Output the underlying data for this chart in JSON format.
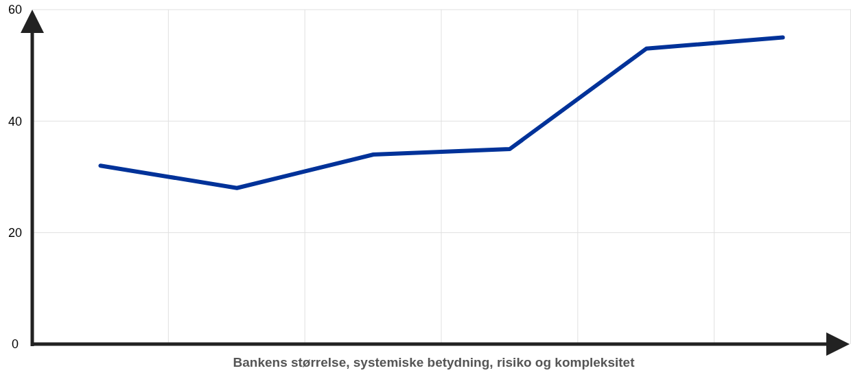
{
  "chart_data": {
    "type": "line",
    "xlabel": "Bankens størrelse, systemiske betydning, risiko og kompleksitet",
    "categories": [
      null,
      null,
      null,
      null,
      null,
      null
    ],
    "series": [
      {
        "color": "#003299",
        "values": [
          32,
          28,
          34,
          35,
          53,
          55
        ]
      }
    ],
    "ylim": [
      0,
      60
    ],
    "yticks": [
      0,
      20,
      40,
      60
    ],
    "grid": true,
    "marker": "none",
    "line_style": "solid"
  }
}
